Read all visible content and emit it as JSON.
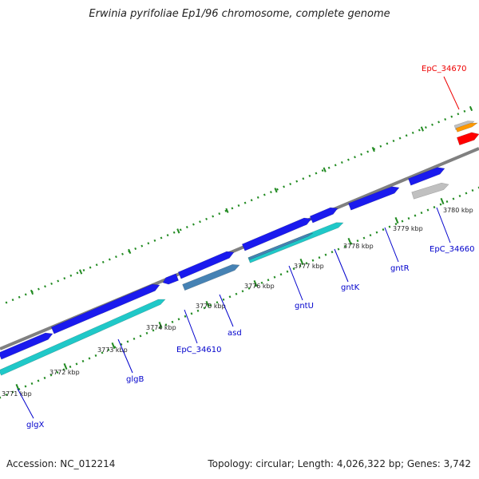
{
  "title": "Erwinia pyrifoliae Ep1/96 chromosome, complete genome",
  "footer": {
    "accession": "Accession: NC_012214",
    "summary": "Topology: circular; Length: 4,026,322 bp; Genes: 3,742"
  },
  "colors": {
    "backbone": "#808080",
    "tick": "#228b22",
    "gene_blue": "#1a1aee",
    "gene_cyan": "#20c8c8",
    "gene_steel": "#4682b4",
    "gene_grey": "#c0c0c0",
    "gene_orange": "#ff9900",
    "gene_red": "#ff0000",
    "label_blue": "#0000cc",
    "label_red": "#ee0000"
  },
  "ticks": [
    {
      "label": "3771 kbp"
    },
    {
      "label": "3772 kbp"
    },
    {
      "label": "3773 kbp"
    },
    {
      "label": "3774 kbp"
    },
    {
      "label": "3775 kbp"
    },
    {
      "label": "3776 kbp"
    },
    {
      "label": "3777 kbp"
    },
    {
      "label": "3778 kbp"
    },
    {
      "label": "3779 kbp"
    },
    {
      "label": "3780 kbp"
    }
  ],
  "genes": [
    {
      "name": "glgX",
      "color": "blue"
    },
    {
      "name": "glgB",
      "color": "blue"
    },
    {
      "name": "EpC_34610",
      "color": "blue"
    },
    {
      "name": "asd",
      "color": "steel"
    },
    {
      "name": "gntU",
      "color": "blue"
    },
    {
      "name": "gntK",
      "color": "blue"
    },
    {
      "name": "gntR",
      "color": "blue"
    },
    {
      "name": "EpC_34660",
      "color": "blue"
    },
    {
      "name": "EpC_34670",
      "color": "red"
    }
  ]
}
